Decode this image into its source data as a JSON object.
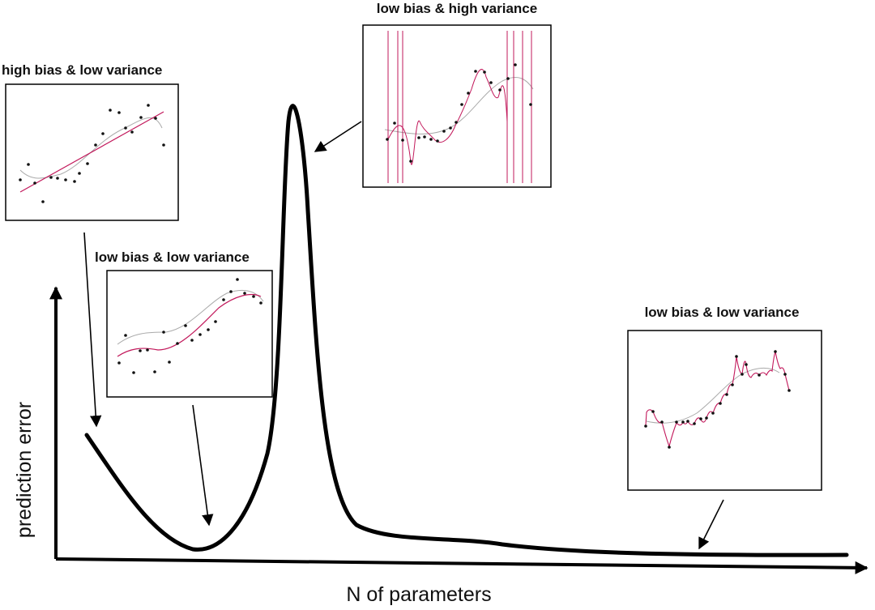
{
  "diagram": {
    "x_axis_label": "N of parameters",
    "y_axis_label": "prediction error",
    "panels": [
      {
        "id": "underfit",
        "title": "high bias & low variance"
      },
      {
        "id": "classical-optimum",
        "title": "low bias & low variance"
      },
      {
        "id": "interpolation-peak",
        "title": "low bias & high variance"
      },
      {
        "id": "overparameterized",
        "title": "low bias & low variance"
      }
    ]
  },
  "colors": {
    "curve": "#000000",
    "fit_line": "#c2185b",
    "true_function": "#9e9e9e",
    "point": "#111111",
    "frame": "#000000"
  }
}
